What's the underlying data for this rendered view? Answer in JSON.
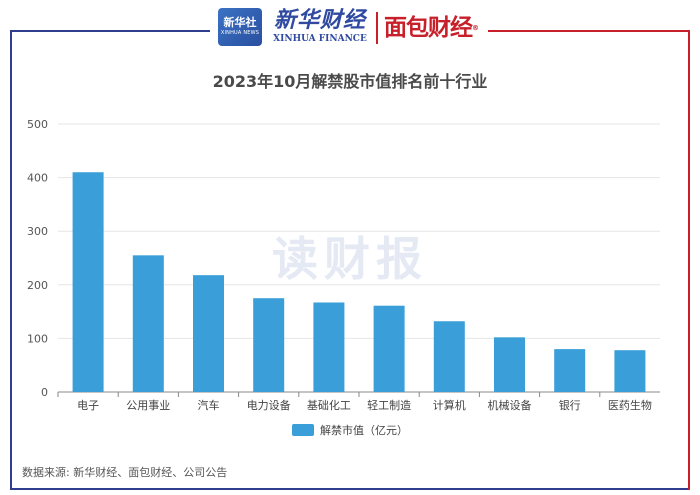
{
  "header": {
    "logo_badge_cn": "新华社",
    "logo_badge_en": "XINHUA NEWS",
    "logo_xinhua_cn": "新华财经",
    "logo_xinhua_en": "XINHUA FINANCE",
    "logo_mianbao": "面包财经"
  },
  "watermark": "读财报",
  "source": "数据来源: 新华财经、面包财经、公司公告",
  "colors": {
    "bar": "#3a9fd9",
    "frame_blue": "#2f3d8f",
    "frame_red": "#c8202a"
  },
  "chart_data": {
    "type": "bar",
    "title": "2023年10月解禁股市值排名前十行业",
    "categories": [
      "电子",
      "公用事业",
      "汽车",
      "电力设备",
      "基础化工",
      "轻工制造",
      "计算机",
      "机械设备",
      "银行",
      "医药生物"
    ],
    "series": [
      {
        "name": "解禁市值（亿元）",
        "values": [
          410,
          255,
          218,
          175,
          167,
          161,
          132,
          102,
          80,
          78
        ]
      }
    ],
    "yticks": [
      "0",
      "100",
      "200",
      "300",
      "400",
      "500"
    ],
    "ylim": [
      0,
      500
    ],
    "grid": true,
    "legend": "bottom-center"
  }
}
